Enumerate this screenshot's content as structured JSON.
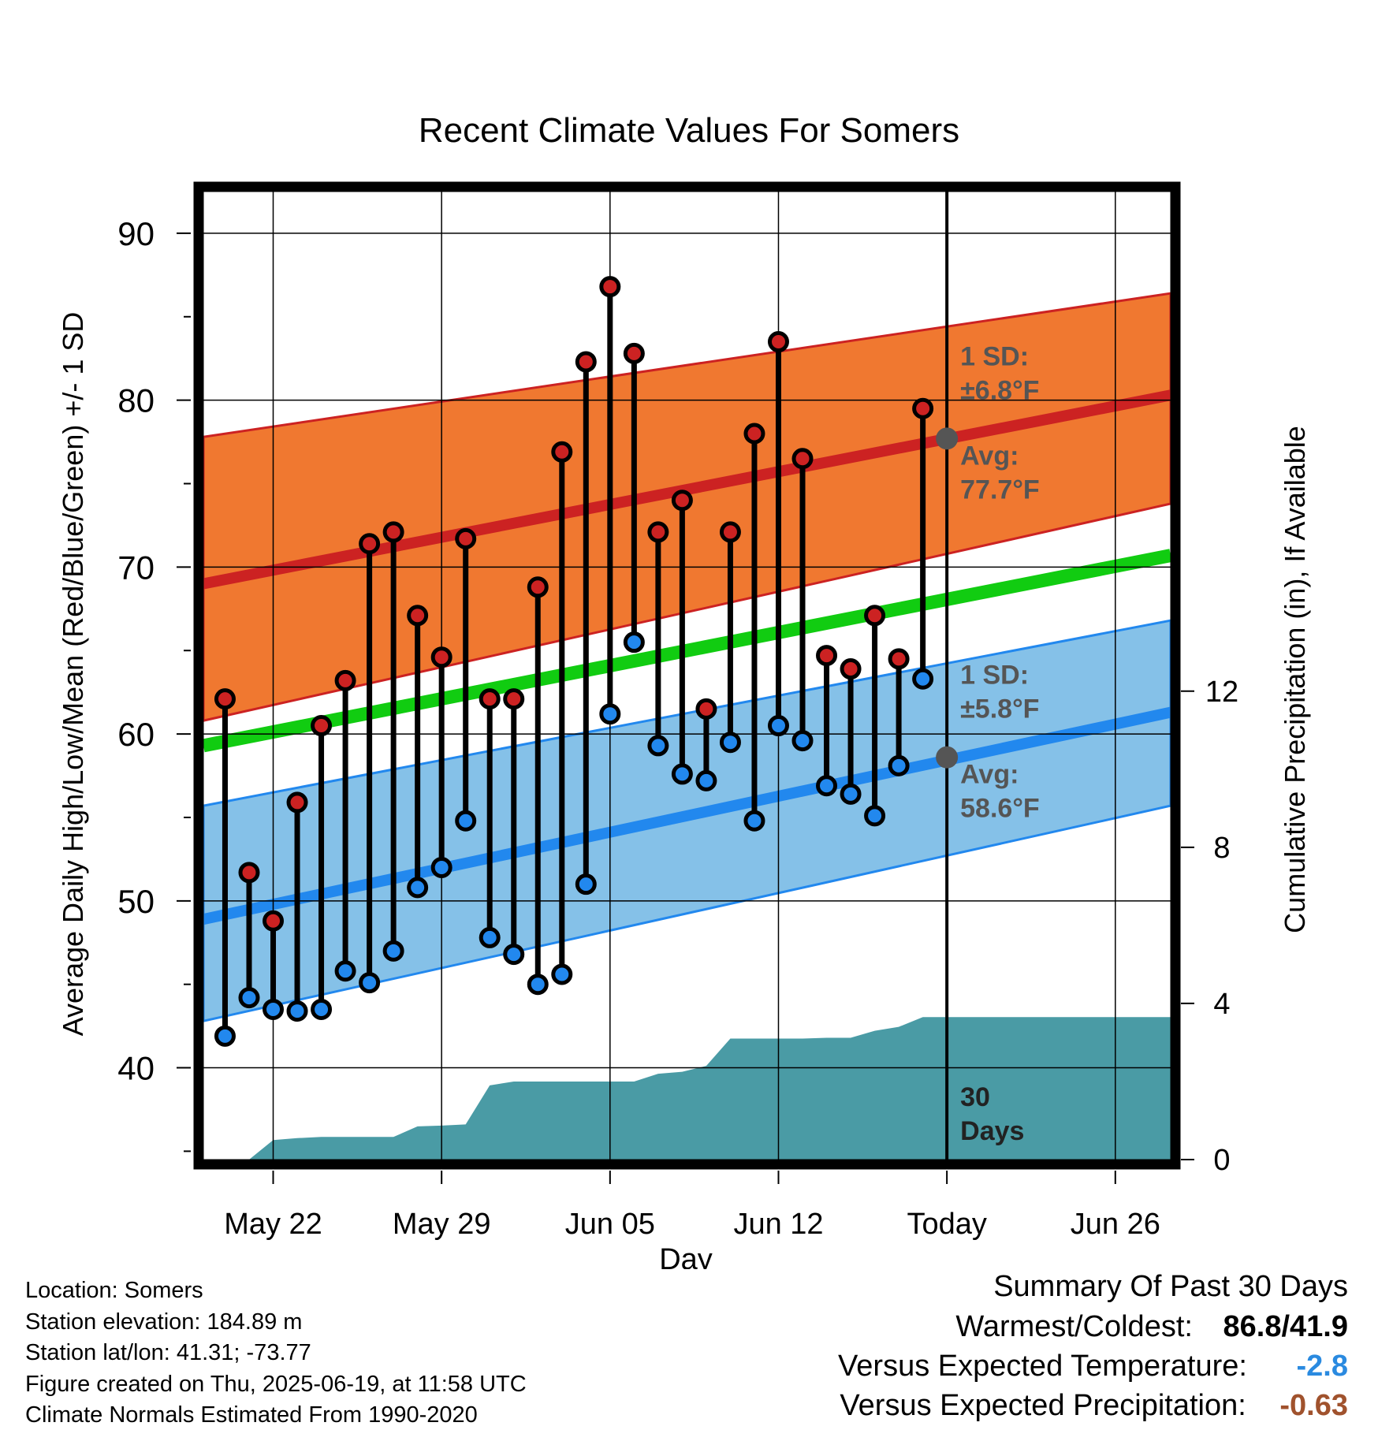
{
  "chart_data": {
    "type": "line",
    "title": "Recent Climate Values For Somers",
    "xlabel": "Day",
    "ylabel": "Average Daily High/Low/Mean (Red/Blue/Green) +/- 1 SD",
    "y2label": "Cumulative Precipitation (in), If Available",
    "ylim": [
      34.5,
      92.5
    ],
    "y2lim": [
      0,
      24.8
    ],
    "yticks": [
      "40",
      "50",
      "60",
      "70",
      "80",
      "90"
    ],
    "y2ticks": [
      "0",
      "4",
      "8",
      "12"
    ],
    "x_day_labels": [
      {
        "day": 2,
        "label": "May 22"
      },
      {
        "day": 9,
        "label": "May 29"
      },
      {
        "day": 16,
        "label": "Jun 05"
      },
      {
        "day": 23,
        "label": "Jun 12"
      },
      {
        "day": 30,
        "label": "Today"
      },
      {
        "day": 37,
        "label": "Jun 26"
      }
    ],
    "x_range_days": [
      -0.9,
      39.3
    ],
    "today_day": 30,
    "grid": true,
    "normals": {
      "days": [
        -0.9,
        39.3
      ],
      "high_avg": [
        69.0,
        80.3
      ],
      "high_plus_sd": [
        77.8,
        86.4
      ],
      "high_minus_sd": [
        60.8,
        73.8
      ],
      "mean_avg": [
        59.3,
        70.7
      ],
      "low_avg": [
        48.9,
        61.3
      ],
      "low_plus_sd": [
        55.7,
        66.8
      ],
      "low_minus_sd": [
        42.8,
        55.7
      ]
    },
    "series": [
      {
        "name": "High",
        "color": "#cc2222",
        "values": [
          62.1,
          51.7,
          48.8,
          55.9,
          60.5,
          63.2,
          71.4,
          72.1,
          67.1,
          64.6,
          71.7,
          62.1,
          62.1,
          68.8,
          76.9,
          82.3,
          86.8,
          82.8,
          72.1,
          74.0,
          61.5,
          72.1,
          78.0,
          83.5,
          76.5,
          64.7,
          63.9,
          67.1,
          64.5,
          79.5
        ]
      },
      {
        "name": "Low",
        "color": "#2288ee",
        "values": [
          41.9,
          44.2,
          43.5,
          43.4,
          43.5,
          45.8,
          45.1,
          47.0,
          50.8,
          52.0,
          54.8,
          47.8,
          46.8,
          45.0,
          45.6,
          51.0,
          61.2,
          65.5,
          59.3,
          57.6,
          57.2,
          59.5,
          54.8,
          60.5,
          59.6,
          56.9,
          56.4,
          55.1,
          58.1,
          63.3
        ]
      }
    ],
    "observation_days": [
      0,
      1,
      2,
      3,
      4,
      5,
      6,
      7,
      8,
      9,
      10,
      11,
      12,
      13,
      14,
      15,
      16,
      17,
      18,
      19,
      20,
      21,
      22,
      23,
      24,
      25,
      26,
      27,
      28,
      29
    ],
    "precip_cumulative": {
      "days": [
        0,
        1,
        2,
        3,
        4,
        5,
        6,
        7,
        8,
        9,
        10,
        11,
        12,
        13,
        14,
        15,
        16,
        17,
        18,
        19,
        20,
        21,
        22,
        23,
        24,
        25,
        26,
        27,
        28,
        29,
        30,
        39.3
      ],
      "values": [
        0,
        0,
        0.5,
        0.55,
        0.58,
        0.58,
        0.58,
        0.58,
        0.85,
        0.87,
        0.9,
        1.9,
        2.0,
        2.0,
        2.0,
        2.0,
        2.0,
        2.0,
        2.2,
        2.25,
        2.4,
        3.1,
        3.1,
        3.1,
        3.1,
        3.12,
        3.12,
        3.3,
        3.4,
        3.65,
        3.65,
        3.65
      ]
    },
    "annotations": {
      "high_sd_label": "1 SD:",
      "high_sd_value": "±6.8°F",
      "high_avg_label": "Avg:",
      "high_avg_value": "77.7°F",
      "high_avg_today": 77.7,
      "low_sd_label": "1 SD:",
      "low_sd_value": "±5.8°F",
      "low_avg_label": "Avg:",
      "low_avg_value": "58.6°F",
      "low_avg_today": 58.6,
      "days_label_1": "30",
      "days_label_2": "Days"
    },
    "colors": {
      "high_band": "#f07830",
      "high_line": "#cc2222",
      "low_band": "#85c1e8",
      "low_line": "#2288ee",
      "mean_line": "#11cc11",
      "precip": "#4a9ba5",
      "annotation_text": "#555555",
      "today_dot": "#555555"
    }
  },
  "footer": {
    "location": "Location: Somers",
    "elevation": "Station elevation: 184.89 m",
    "latlon": "Station lat/lon: 41.31; -73.77",
    "created": "Figure created on Thu, 2025-06-19, at 11:58 UTC",
    "normals": "Climate Normals Estimated From 1990-2020"
  },
  "summary": {
    "heading": "Summary Of Past 30 Days",
    "warmest_label": "Warmest/Coldest:",
    "warmest_value": "86.8/41.9",
    "temp_label": "Versus Expected Temperature:",
    "temp_value": "-2.8",
    "temp_color": "#2a8ae0",
    "precip_label": "Versus Expected Precipitation:",
    "precip_value": "-0.63",
    "precip_color": "#a0522d"
  }
}
